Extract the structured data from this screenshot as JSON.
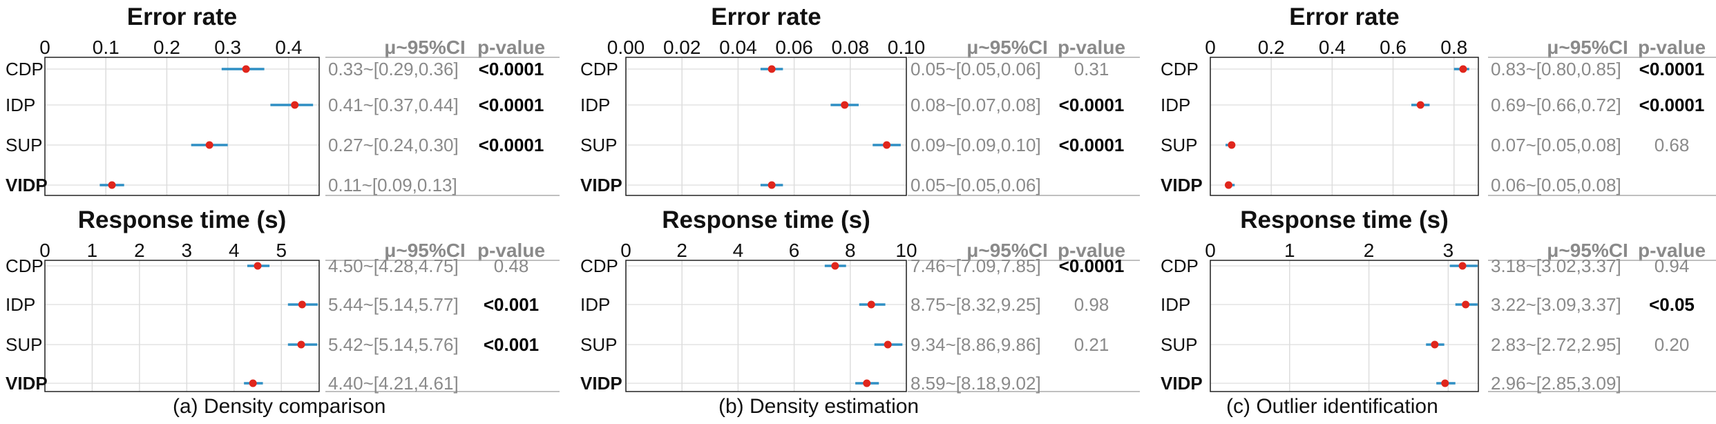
{
  "table_headers": {
    "ci": "μ~95%CI",
    "p": "p-value"
  },
  "captions": [
    "(a) Density comparison",
    "(b) Density estimation",
    "(c) Outlier identification"
  ],
  "colors": {
    "point": "#e0261c",
    "ci_line": "#2f8fc4",
    "frame": "#222222",
    "grid": "#dddddd",
    "table_text": "#8a8a8a"
  },
  "chart_data": [
    {
      "type": "scatter",
      "panel": "a",
      "title": "Error rate",
      "xlim": [
        0,
        0.45
      ],
      "ticks": [
        "0",
        "0.1",
        "0.2",
        "0.3",
        "0.4"
      ],
      "tick_values": [
        0,
        0.1,
        0.2,
        0.3,
        0.4
      ],
      "rows": [
        {
          "label": "CDP",
          "mean": 0.33,
          "lo": 0.29,
          "hi": 0.36,
          "ci_text": "0.33~[0.29,0.36]",
          "p": "<0.0001",
          "p_bold": true
        },
        {
          "label": "IDP",
          "mean": 0.41,
          "lo": 0.37,
          "hi": 0.44,
          "ci_text": "0.41~[0.37,0.44]",
          "p": "<0.0001",
          "p_bold": true
        },
        {
          "label": "SUP",
          "mean": 0.27,
          "lo": 0.24,
          "hi": 0.3,
          "ci_text": "0.27~[0.24,0.30]",
          "p": "<0.0001",
          "p_bold": true
        },
        {
          "label": "VIDP",
          "mean": 0.11,
          "lo": 0.09,
          "hi": 0.13,
          "ci_text": "0.11~[0.09,0.13]",
          "p": "",
          "p_bold": false,
          "label_bold": true
        }
      ]
    },
    {
      "type": "scatter",
      "panel": "a",
      "title": "Response time (s)",
      "xlim": [
        0,
        5.8
      ],
      "ticks": [
        "0",
        "1",
        "2",
        "3",
        "4",
        "5"
      ],
      "tick_values": [
        0,
        1,
        2,
        3,
        4,
        5
      ],
      "rows": [
        {
          "label": "CDP",
          "mean": 4.5,
          "lo": 4.28,
          "hi": 4.75,
          "ci_text": "4.50~[4.28,4.75]",
          "p": "0.48",
          "p_bold": false
        },
        {
          "label": "IDP",
          "mean": 5.44,
          "lo": 5.14,
          "hi": 5.77,
          "ci_text": "5.44~[5.14,5.77]",
          "p": "<0.001",
          "p_bold": true
        },
        {
          "label": "SUP",
          "mean": 5.42,
          "lo": 5.14,
          "hi": 5.76,
          "ci_text": "5.42~[5.14,5.76]",
          "p": "<0.001",
          "p_bold": true
        },
        {
          "label": "VIDP",
          "mean": 4.4,
          "lo": 4.21,
          "hi": 4.61,
          "ci_text": "4.40~[4.21,4.61]",
          "p": "",
          "p_bold": false,
          "label_bold": true
        }
      ]
    },
    {
      "type": "scatter",
      "panel": "b",
      "title": "Error rate",
      "xlim": [
        0,
        0.1
      ],
      "ticks": [
        "0.00",
        "0.02",
        "0.04",
        "0.06",
        "0.08",
        "0.10"
      ],
      "tick_values": [
        0,
        0.02,
        0.04,
        0.06,
        0.08,
        0.1
      ],
      "rows": [
        {
          "label": "CDP",
          "mean": 0.052,
          "lo": 0.048,
          "hi": 0.056,
          "ci_text": "0.05~[0.05,0.06]",
          "p": "0.31",
          "p_bold": false
        },
        {
          "label": "IDP",
          "mean": 0.078,
          "lo": 0.073,
          "hi": 0.083,
          "ci_text": "0.08~[0.07,0.08]",
          "p": "<0.0001",
          "p_bold": true
        },
        {
          "label": "SUP",
          "mean": 0.093,
          "lo": 0.088,
          "hi": 0.098,
          "ci_text": "0.09~[0.09,0.10]",
          "p": "<0.0001",
          "p_bold": true
        },
        {
          "label": "VIDP",
          "mean": 0.052,
          "lo": 0.048,
          "hi": 0.056,
          "ci_text": "0.05~[0.05,0.06]",
          "p": "",
          "p_bold": false,
          "label_bold": true
        }
      ]
    },
    {
      "type": "scatter",
      "panel": "b",
      "title": "Response time (s)",
      "xlim": [
        0,
        10
      ],
      "ticks": [
        "0",
        "2",
        "4",
        "6",
        "8",
        "10"
      ],
      "tick_values": [
        0,
        2,
        4,
        6,
        8,
        10
      ],
      "rows": [
        {
          "label": "CDP",
          "mean": 7.46,
          "lo": 7.09,
          "hi": 7.85,
          "ci_text": "7.46~[7.09,7.85]",
          "p": "<0.0001",
          "p_bold": true
        },
        {
          "label": "IDP",
          "mean": 8.75,
          "lo": 8.32,
          "hi": 9.25,
          "ci_text": "8.75~[8.32,9.25]",
          "p": "0.98",
          "p_bold": false
        },
        {
          "label": "SUP",
          "mean": 9.34,
          "lo": 8.86,
          "hi": 9.86,
          "ci_text": "9.34~[8.86,9.86]",
          "p": "0.21",
          "p_bold": false
        },
        {
          "label": "VIDP",
          "mean": 8.59,
          "lo": 8.18,
          "hi": 9.02,
          "ci_text": "8.59~[8.18,9.02]",
          "p": "",
          "p_bold": false,
          "label_bold": true
        }
      ]
    },
    {
      "type": "scatter",
      "panel": "c",
      "title": "Error rate",
      "xlim": [
        0,
        0.88
      ],
      "ticks": [
        "0",
        "0.2",
        "0.4",
        "0.6",
        "0.8"
      ],
      "tick_values": [
        0,
        0.2,
        0.4,
        0.6,
        0.8
      ],
      "rows": [
        {
          "label": "CDP",
          "mean": 0.83,
          "lo": 0.8,
          "hi": 0.85,
          "ci_text": "0.83~[0.80,0.85]",
          "p": "<0.0001",
          "p_bold": true
        },
        {
          "label": "IDP",
          "mean": 0.69,
          "lo": 0.66,
          "hi": 0.72,
          "ci_text": "0.69~[0.66,0.72]",
          "p": "<0.0001",
          "p_bold": true
        },
        {
          "label": "SUP",
          "mean": 0.07,
          "lo": 0.05,
          "hi": 0.08,
          "ci_text": "0.07~[0.05,0.08]",
          "p": "0.68",
          "p_bold": false
        },
        {
          "label": "VIDP",
          "mean": 0.06,
          "lo": 0.05,
          "hi": 0.08,
          "ci_text": "0.06~[0.05,0.08]",
          "p": "",
          "p_bold": false,
          "label_bold": true
        }
      ]
    },
    {
      "type": "scatter",
      "panel": "c",
      "title": "Response time (s)",
      "xlim": [
        0,
        3.38
      ],
      "ticks": [
        "0",
        "1",
        "2",
        "3"
      ],
      "tick_values": [
        0,
        1,
        2,
        3
      ],
      "rows": [
        {
          "label": "CDP",
          "mean": 3.18,
          "lo": 3.02,
          "hi": 3.37,
          "ci_text": "3.18~[3.02,3.37]",
          "p": "0.94",
          "p_bold": false
        },
        {
          "label": "IDP",
          "mean": 3.22,
          "lo": 3.09,
          "hi": 3.37,
          "ci_text": "3.22~[3.09,3.37]",
          "p": "<0.05",
          "p_bold": true
        },
        {
          "label": "SUP",
          "mean": 2.83,
          "lo": 2.72,
          "hi": 2.95,
          "ci_text": "2.83~[2.72,2.95]",
          "p": "0.20",
          "p_bold": false
        },
        {
          "label": "VIDP",
          "mean": 2.96,
          "lo": 2.85,
          "hi": 3.09,
          "ci_text": "2.96~[2.85,3.09]",
          "p": "",
          "p_bold": false,
          "label_bold": true
        }
      ]
    }
  ]
}
